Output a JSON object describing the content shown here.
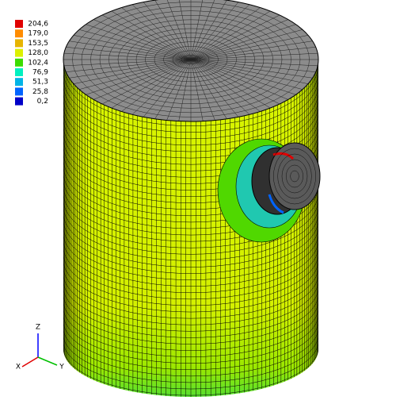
{
  "legend": {
    "entries": [
      {
        "label": "204,6",
        "color": "#e00000"
      },
      {
        "label": "179,0",
        "color": "#ff8c00"
      },
      {
        "label": "153,5",
        "color": "#e6b400"
      },
      {
        "label": "128,0",
        "color": "#dcf000"
      },
      {
        "label": "102,4",
        "color": "#3cdc00"
      },
      {
        "label": "76,9",
        "color": "#00f0c0"
      },
      {
        "label": "51,3",
        "color": "#00b4e6"
      },
      {
        "label": "25,8",
        "color": "#0064ff"
      },
      {
        "label": "0,2",
        "color": "#0000c8"
      }
    ]
  },
  "axes": {
    "z": "Z",
    "x": "X",
    "y": "Y"
  }
}
